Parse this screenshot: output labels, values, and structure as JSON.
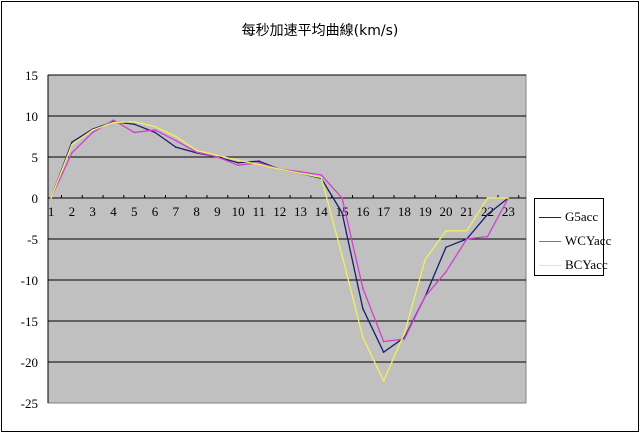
{
  "chart_data": {
    "type": "line",
    "title": "每秒加速平均曲線(km/s)",
    "xlabel": "",
    "ylabel": "",
    "categories": [
      "1",
      "2",
      "3",
      "4",
      "5",
      "6",
      "7",
      "8",
      "9",
      "10",
      "11",
      "12",
      "13",
      "14",
      "15",
      "16",
      "17",
      "18",
      "19",
      "20",
      "21",
      "22",
      "23"
    ],
    "ylim": [
      -25,
      15
    ],
    "yticks": [
      15,
      10,
      5,
      0,
      -5,
      -10,
      -15,
      -20,
      -25
    ],
    "grid": true,
    "legend_position": "right",
    "plot_background": "#c0c0c0",
    "series": [
      {
        "name": "G5acc",
        "color": "#1c1c70",
        "values": [
          0,
          6.8,
          8.4,
          9.3,
          9.0,
          8.0,
          6.2,
          5.5,
          5.0,
          4.3,
          4.5,
          3.5,
          3.0,
          2.4,
          -1.8,
          -13.5,
          -18.8,
          -17.0,
          -12.0,
          -6.0,
          -5.0,
          -2.0,
          0
        ]
      },
      {
        "name": "WCYacc",
        "color": "#d040d0",
        "values": [
          0,
          5.5,
          8.0,
          9.5,
          8.0,
          8.3,
          7.0,
          5.6,
          5.0,
          4.0,
          4.3,
          3.5,
          3.2,
          2.8,
          0,
          -11.0,
          -17.5,
          -17.2,
          -12.0,
          -9.0,
          -5.0,
          -4.7,
          0
        ]
      },
      {
        "name": "BCYacc",
        "color": "#f0f060",
        "values": [
          0,
          6.5,
          8.3,
          9.2,
          9.3,
          8.7,
          7.5,
          5.8,
          5.2,
          4.6,
          4.1,
          3.5,
          3.0,
          2.5,
          -7.0,
          -17.0,
          -22.3,
          -16.5,
          -7.5,
          -4.0,
          -4.0,
          0,
          0
        ]
      }
    ]
  }
}
